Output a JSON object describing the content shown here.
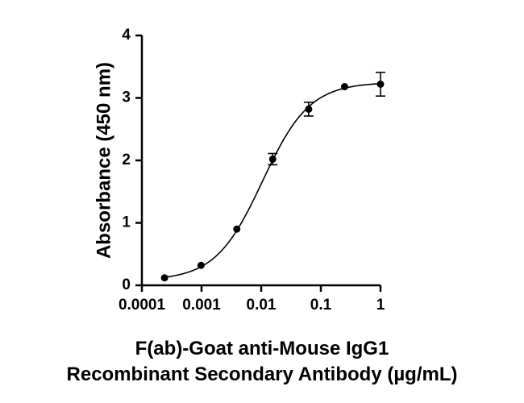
{
  "chart_data": {
    "type": "scatter",
    "x_scale": "log",
    "xlabel_line1": "F(ab)-Goat anti-Mouse IgG1",
    "xlabel_line2": "Recombinant Secondary Antibody (µg/mL)",
    "ylabel": "Absorbance (450 nm)",
    "xlim": [
      0.0001,
      1
    ],
    "ylim": [
      0,
      4
    ],
    "x_ticks": [
      0.0001,
      0.001,
      0.01,
      0.1,
      1
    ],
    "x_tick_labels": [
      "0.0001",
      "0.001",
      "0.01",
      "0.1",
      "1"
    ],
    "y_ticks": [
      0,
      1,
      2,
      3,
      4
    ],
    "y_tick_labels": [
      "0",
      "1",
      "2",
      "3",
      "4"
    ],
    "grid": false,
    "series": [
      {
        "x": [
          0.00024,
          0.00098,
          0.0039,
          0.0156,
          0.0625,
          0.25,
          1
        ],
        "y": [
          0.12,
          0.32,
          0.9,
          2.02,
          2.82,
          3.18,
          3.22
        ],
        "error": [
          0.0,
          0.0,
          0.0,
          0.09,
          0.11,
          0.0,
          0.19
        ]
      }
    ],
    "fit_curve": {
      "type": "4PL",
      "bottom": 0.08,
      "top": 3.25,
      "ec50": 0.0105,
      "hill": 1.1
    }
  }
}
